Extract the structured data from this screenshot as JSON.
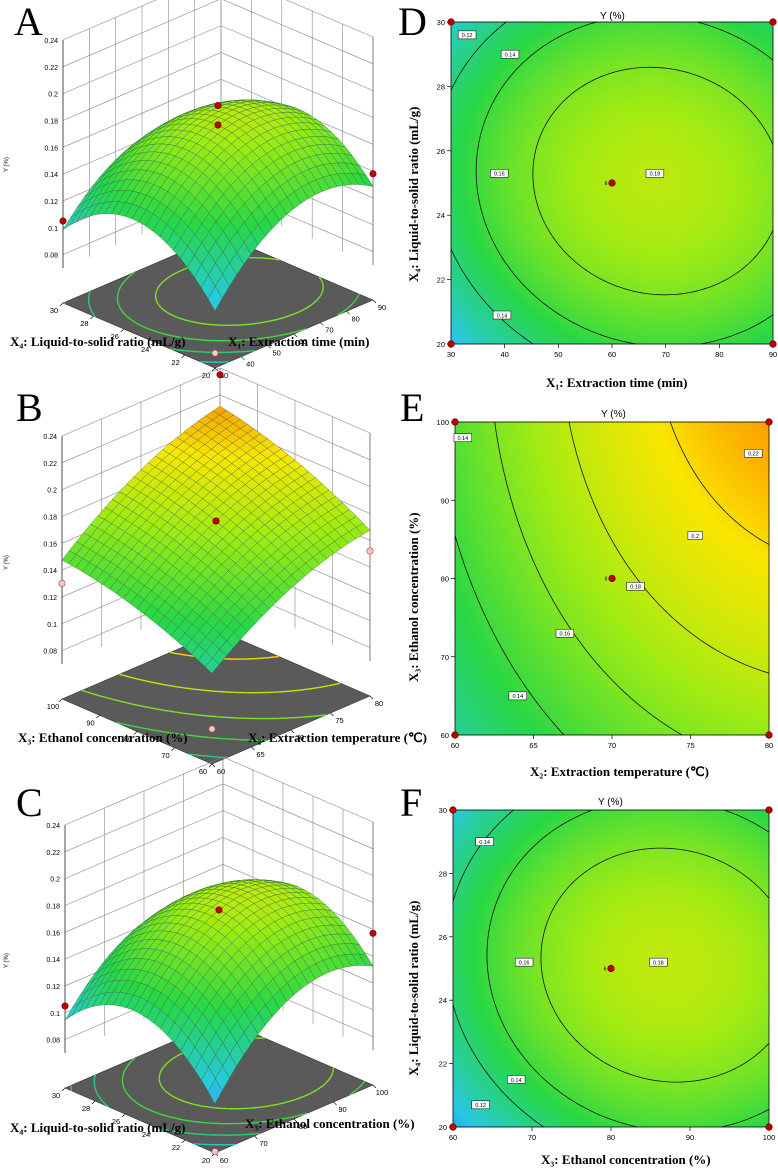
{
  "letters": {
    "A": "A",
    "B": "B",
    "C": "C",
    "D": "D",
    "E": "E",
    "F": "F"
  },
  "colors": {
    "low": "#1E50DC",
    "mid": "#25DC3C",
    "high": "#FF2A00",
    "floor": "#5a5a5a",
    "point": "#c00000",
    "open_point": "#f4c6c6"
  },
  "chart_data": [
    {
      "id": "A",
      "type": "surface3d",
      "title": "",
      "xlabel": "X₁: Extraction time (min)",
      "ylabel": "X₄: Liquid-to-solid ratio (mL/g)",
      "zlabel": "Y (%)",
      "xticks": [
        "30",
        "40",
        "50",
        "60",
        "70",
        "80",
        "90"
      ],
      "yticks": [
        "20",
        "22",
        "24",
        "26",
        "28",
        "30"
      ],
      "zticks": [
        "0.08",
        "0.1",
        "0.12",
        "0.14",
        "0.16",
        "0.18",
        "0.2",
        "0.22",
        "0.24"
      ],
      "xlim": [
        30,
        90
      ],
      "ylim": [
        20,
        30
      ],
      "zlim": [
        0.07,
        0.24
      ],
      "model": {
        "a": 0.1755,
        "bx": 0.017,
        "by": 0.002,
        "bxx": -0.03,
        "byy": -0.036,
        "bxy": -0.004
      },
      "points": [
        {
          "x": 60,
          "y": 25,
          "z": 0.1755
        },
        {
          "x": 60,
          "y": 25,
          "z": 0.19
        },
        {
          "x": 30,
          "y": 30,
          "z": 0.105
        },
        {
          "x": 90,
          "y": 20,
          "z": 0.138
        },
        {
          "x": 30,
          "y": 20,
          "z": 0.055
        }
      ]
    },
    {
      "id": "B",
      "type": "surface3d",
      "title": "",
      "xlabel": "X₂: Extraction temperature (℃)",
      "ylabel": "X₃: Ethanol concentration (%)",
      "zlabel": "Y (%)",
      "xticks": [
        "60",
        "65",
        "70",
        "75",
        "80"
      ],
      "yticks": [
        "60",
        "70",
        "80",
        "90",
        "100"
      ],
      "zticks": [
        "0.08",
        "0.1",
        "0.12",
        "0.14",
        "0.16",
        "0.18",
        "0.2",
        "0.22",
        "0.24"
      ],
      "xlim": [
        60,
        80
      ],
      "ylim": [
        60,
        100
      ],
      "zlim": [
        0.07,
        0.24
      ],
      "model": {
        "a": 0.1755,
        "bx": 0.03,
        "by": 0.02,
        "bxx": -0.01,
        "byy": -0.006,
        "bxy": 0.002
      },
      "points": [
        {
          "x": 70,
          "y": 80,
          "z": 0.1755
        },
        {
          "x": 80,
          "y": 100,
          "z": 0.235
        },
        {
          "x": 60,
          "y": 100,
          "z": 0.13
        },
        {
          "x": 80,
          "y": 60,
          "z": 0.152
        },
        {
          "x": 60,
          "y": 60,
          "z": 0.07
        }
      ]
    },
    {
      "id": "C",
      "type": "surface3d",
      "title": "",
      "xlabel": "X₃: Ethanol concentration (%)",
      "ylabel": "X₄: Liquid-to-solid ratio (mL/g)",
      "zlabel": "Y (%)",
      "xticks": [
        "60",
        "70",
        "80",
        "90",
        "100"
      ],
      "yticks": [
        "20",
        "22",
        "24",
        "26",
        "28",
        "30"
      ],
      "zticks": [
        "0.08",
        "0.1",
        "0.12",
        "0.14",
        "0.16",
        "0.18",
        "0.2",
        "0.22",
        "0.24"
      ],
      "xlim": [
        60,
        100
      ],
      "ylim": [
        20,
        30
      ],
      "zlim": [
        0.07,
        0.24
      ],
      "model": {
        "a": 0.1755,
        "bx": 0.022,
        "by": 0.003,
        "bxx": -0.03,
        "byy": -0.036,
        "bxy": -0.004
      },
      "points": [
        {
          "x": 80,
          "y": 25,
          "z": 0.1755
        },
        {
          "x": 100,
          "y": 20,
          "z": 0.157
        },
        {
          "x": 60,
          "y": 30,
          "z": 0.105
        },
        {
          "x": 60,
          "y": 20,
          "z": 0.045
        }
      ]
    },
    {
      "id": "D",
      "type": "contour",
      "title": "Y (%)",
      "xlabel": "X₁: Extraction time (min)",
      "ylabel": "X₄: Liquid-to-solid ratio (mL/g)",
      "xticks": [
        "30",
        "40",
        "50",
        "60",
        "70",
        "80",
        "90"
      ],
      "yticks": [
        "20",
        "22",
        "24",
        "26",
        "28",
        "30"
      ],
      "xlim": [
        30,
        90
      ],
      "ylim": [
        20,
        30
      ],
      "model": {
        "a": 0.1755,
        "bx": 0.017,
        "by": 0.002,
        "bxx": -0.03,
        "byy": -0.036,
        "bxy": -0.004
      },
      "levels": [
        0.12,
        0.14,
        0.16,
        0.18
      ],
      "contour_labels": [
        {
          "text": "0.12",
          "x": 33,
          "y": 29.6
        },
        {
          "text": "0.14",
          "x": 41,
          "y": 29
        },
        {
          "text": "0.16",
          "x": 39,
          "y": 25.3
        },
        {
          "text": "0.18",
          "x": 68,
          "y": 25.3
        },
        {
          "text": "0.14",
          "x": 39.5,
          "y": 20.9
        }
      ],
      "center": {
        "x": 60,
        "y": 25,
        "label": "6"
      },
      "design_points": [
        {
          "x": 30,
          "y": 30
        },
        {
          "x": 90,
          "y": 30
        },
        {
          "x": 30,
          "y": 20
        },
        {
          "x": 90,
          "y": 20
        }
      ]
    },
    {
      "id": "E",
      "type": "contour",
      "title": "Y (%)",
      "xlabel": "X₂: Extraction temperature (℃)",
      "ylabel": "X₃: Ethanol concentration (%)",
      "xticks": [
        "60",
        "65",
        "70",
        "75",
        "80"
      ],
      "yticks": [
        "60",
        "70",
        "80",
        "90",
        "100"
      ],
      "xlim": [
        60,
        80
      ],
      "ylim": [
        60,
        100
      ],
      "model": {
        "a": 0.1755,
        "bx": 0.03,
        "by": 0.02,
        "bxx": -0.01,
        "byy": -0.006,
        "bxy": 0.002
      },
      "levels": [
        0.14,
        0.16,
        0.18,
        0.2,
        0.22
      ],
      "contour_labels": [
        {
          "text": "0.14",
          "x": 60.5,
          "y": 98
        },
        {
          "text": "0.14",
          "x": 64,
          "y": 65
        },
        {
          "text": "0.16",
          "x": 67,
          "y": 73
        },
        {
          "text": "0.18",
          "x": 71.5,
          "y": 79
        },
        {
          "text": "0.2",
          "x": 75.3,
          "y": 85.5
        },
        {
          "text": "0.22",
          "x": 79,
          "y": 96
        }
      ],
      "center": {
        "x": 70,
        "y": 80,
        "label": "6"
      },
      "design_points": [
        {
          "x": 60,
          "y": 100
        },
        {
          "x": 80,
          "y": 100
        },
        {
          "x": 60,
          "y": 60
        },
        {
          "x": 80,
          "y": 60
        }
      ]
    },
    {
      "id": "F",
      "type": "contour",
      "title": "Y (%)",
      "xlabel": "X₃: Ethanol concentration (%)",
      "ylabel": "X₄: Liquid-to-solid ratio (mL/g)",
      "xticks": [
        "60",
        "70",
        "80",
        "90",
        "100"
      ],
      "yticks": [
        "20",
        "22",
        "24",
        "26",
        "28",
        "30"
      ],
      "xlim": [
        60,
        100
      ],
      "ylim": [
        20,
        30
      ],
      "model": {
        "a": 0.1755,
        "bx": 0.022,
        "by": 0.003,
        "bxx": -0.03,
        "byy": -0.036,
        "bxy": -0.004
      },
      "levels": [
        0.12,
        0.14,
        0.16,
        0.18
      ],
      "contour_labels": [
        {
          "text": "0.14",
          "x": 64,
          "y": 29
        },
        {
          "text": "0.16",
          "x": 69,
          "y": 25.2
        },
        {
          "text": "0.18",
          "x": 86,
          "y": 25.2
        },
        {
          "text": "0.14",
          "x": 68,
          "y": 21.5
        },
        {
          "text": "0.12",
          "x": 63.5,
          "y": 20.7
        }
      ],
      "center": {
        "x": 80,
        "y": 25,
        "label": "6"
      },
      "design_points": [
        {
          "x": 60,
          "y": 30
        },
        {
          "x": 100,
          "y": 30
        },
        {
          "x": 60,
          "y": 20
        },
        {
          "x": 100,
          "y": 20
        }
      ]
    }
  ]
}
